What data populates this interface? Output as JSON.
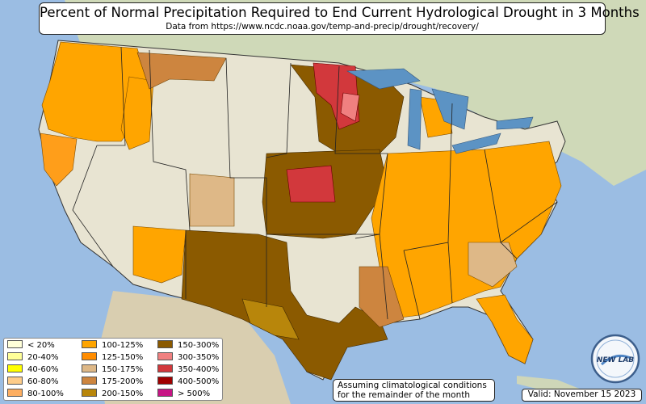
{
  "header": {
    "title": "Percent of Normal Precipitation Required to End Current Hydrological Drought in 3 Months",
    "subtitle": "Data from https://www.ncdc.noaa.gov/temp-and-precip/drought/recovery/"
  },
  "legend": {
    "items": [
      {
        "label": "< 20%",
        "color": "#ffffd9"
      },
      {
        "label": "20-40%",
        "color": "#ffff99"
      },
      {
        "label": "40-60%",
        "color": "#ffff00"
      },
      {
        "label": "60-80%",
        "color": "#fdcc8a"
      },
      {
        "label": "80-100%",
        "color": "#fdae61"
      },
      {
        "label": "100-125%",
        "color": "#ffa500"
      },
      {
        "label": "125-150%",
        "color": "#ff8c00"
      },
      {
        "label": "150-175%",
        "color": "#deb887"
      },
      {
        "label": "175-200%",
        "color": "#cd853f"
      },
      {
        "label": "200-150%",
        "color": "#b8860b"
      },
      {
        "label": "150-300%",
        "color": "#8b5a00"
      },
      {
        "label": "300-350%",
        "color": "#f08080"
      },
      {
        "label": "350-400%",
        "color": "#d2383c"
      },
      {
        "label": "400-500%",
        "color": "#a00000"
      },
      {
        "label": "> 500%",
        "color": "#c71585"
      }
    ]
  },
  "note": {
    "line1": "Assuming climatological conditions",
    "line2": "for the remainder of the month"
  },
  "valid": "Valid: November 15 2023",
  "logo": {
    "text": "NEW LAB",
    "icon": "globe-icon"
  },
  "colors": {
    "ocean": "#9bbde3",
    "land": "#e8e4d2",
    "great_lakes": "#5c93c4"
  }
}
